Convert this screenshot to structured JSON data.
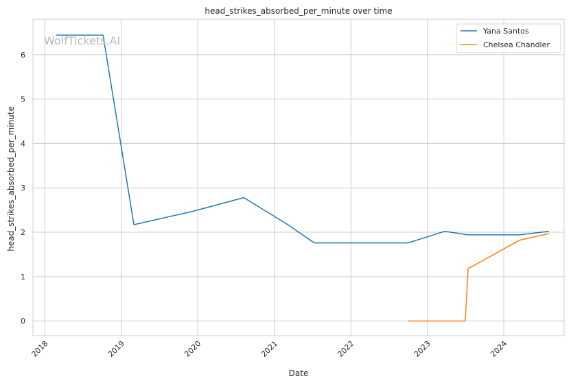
{
  "chart_data": {
    "type": "line",
    "title": "head_strikes_absorbed_per_minute over time",
    "xlabel": "Date",
    "ylabel": "head_strikes_absorbed_per_minute",
    "watermark": "WolfTickets.AI",
    "grid": true,
    "legend_position": "top-right",
    "x_type": "date",
    "xlim": [
      "2017-11-05",
      "2024-10-15"
    ],
    "ylim": [
      -0.33,
      6.8
    ],
    "x_ticks": [
      "2018",
      "2019",
      "2020",
      "2021",
      "2022",
      "2023",
      "2024"
    ],
    "y_ticks": [
      0,
      1,
      2,
      3,
      4,
      5,
      6
    ],
    "series": [
      {
        "name": "Yana Santos",
        "color": "#1f77b4",
        "points": [
          [
            "2018-02-24",
            6.44
          ],
          [
            "2018-10-06",
            6.44
          ],
          [
            "2019-03-02",
            2.17
          ],
          [
            "2019-12-07",
            2.47
          ],
          [
            "2020-08-08",
            2.78
          ],
          [
            "2021-03-06",
            2.17
          ],
          [
            "2021-07-10",
            1.76
          ],
          [
            "2022-10-01",
            1.76
          ],
          [
            "2023-03-25",
            2.02
          ],
          [
            "2023-07-15",
            1.94
          ],
          [
            "2024-03-16",
            1.94
          ],
          [
            "2024-08-03",
            2.02
          ]
        ]
      },
      {
        "name": "Chelsea Chandler",
        "color": "#ff7f0e",
        "points": [
          [
            "2022-10-01",
            0.0
          ],
          [
            "2023-07-01",
            0.0
          ],
          [
            "2023-07-15",
            1.18
          ],
          [
            "2024-03-16",
            1.82
          ],
          [
            "2024-08-03",
            1.97
          ]
        ]
      }
    ]
  }
}
